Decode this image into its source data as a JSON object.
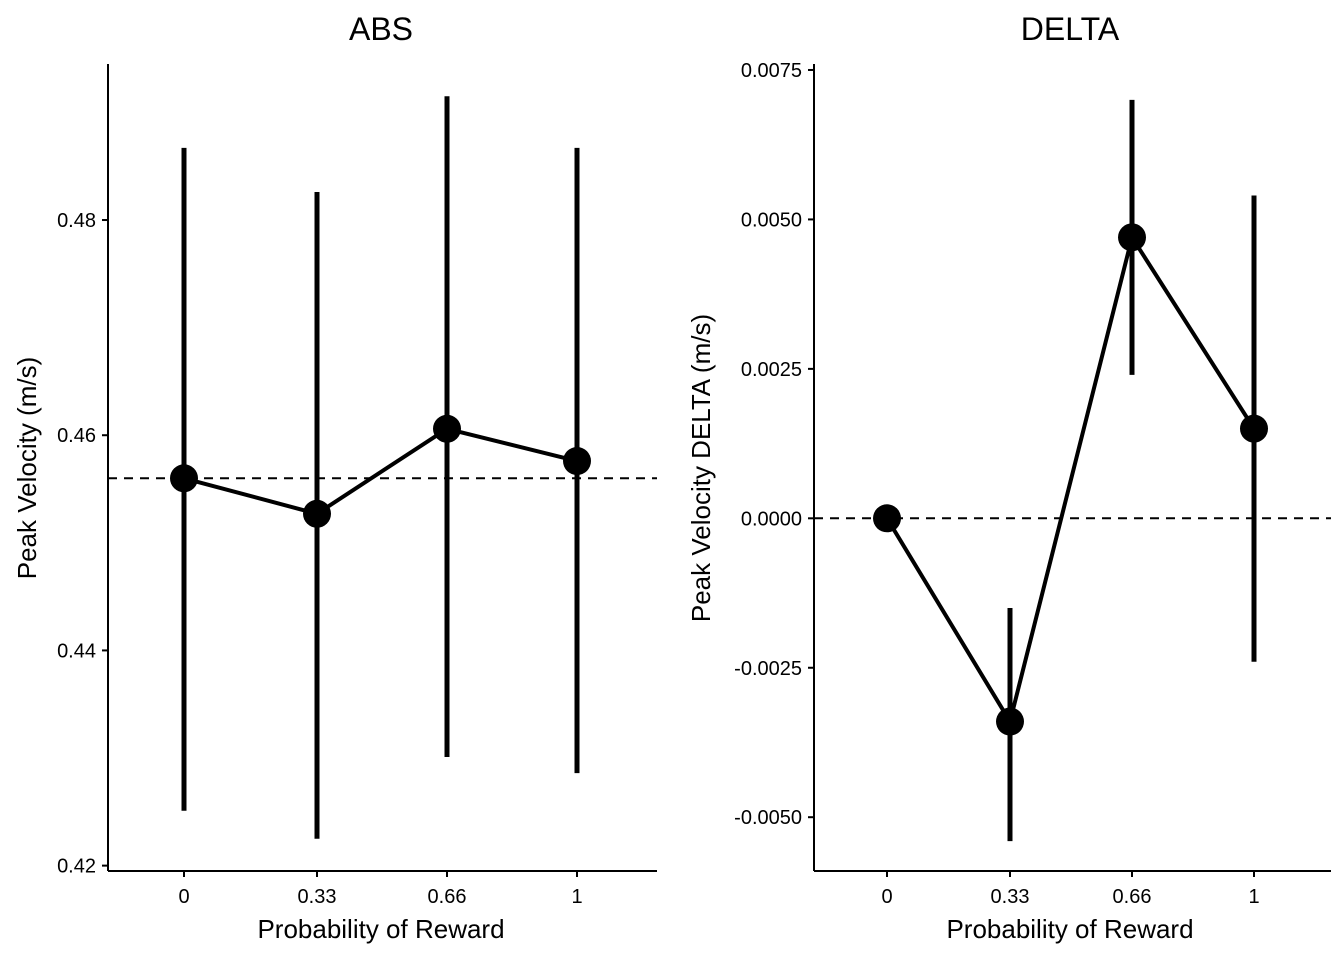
{
  "chart_data": [
    {
      "type": "line",
      "title": "ABS",
      "xlabel": "Probability of Reward",
      "ylabel": "Peak Velocity (m/s)",
      "categories": [
        "0",
        "0.33",
        "0.66",
        "1"
      ],
      "y_ticks": [
        "0.42",
        "0.44",
        "0.46",
        "0.48"
      ],
      "y_tick_values": [
        0.42,
        0.44,
        0.46,
        0.48
      ],
      "ylim": [
        0.4195,
        0.4945
      ],
      "reference_line": 0.456,
      "grid": false,
      "series": [
        {
          "values": [
            0.456,
            0.4527,
            0.4606,
            0.4576
          ],
          "error_low": [
            0.4251,
            0.4225,
            0.4301,
            0.4286
          ],
          "error_high": [
            0.4867,
            0.4826,
            0.4915,
            0.4867
          ]
        }
      ]
    },
    {
      "type": "line",
      "title": "DELTA",
      "xlabel": "Probability of Reward",
      "ylabel": "Peak Velocity DELTA (m/s)",
      "categories": [
        "0",
        "0.33",
        "0.66",
        "1"
      ],
      "y_ticks": [
        "-0.0050",
        "-0.0025",
        "0.0000",
        "0.0025",
        "0.0050",
        "0.0075"
      ],
      "y_tick_values": [
        -0.005,
        -0.0025,
        0,
        0.0025,
        0.005,
        0.0075
      ],
      "ylim": [
        -0.0059,
        0.0076
      ],
      "reference_line": 0,
      "grid": false,
      "series": [
        {
          "values": [
            0,
            -0.0034,
            0.0047,
            0.0015
          ],
          "error_low": [
            0,
            -0.0054,
            0.0024,
            -0.0024
          ],
          "error_high": [
            0,
            -0.0015,
            0.007,
            0.0054
          ]
        }
      ]
    }
  ]
}
